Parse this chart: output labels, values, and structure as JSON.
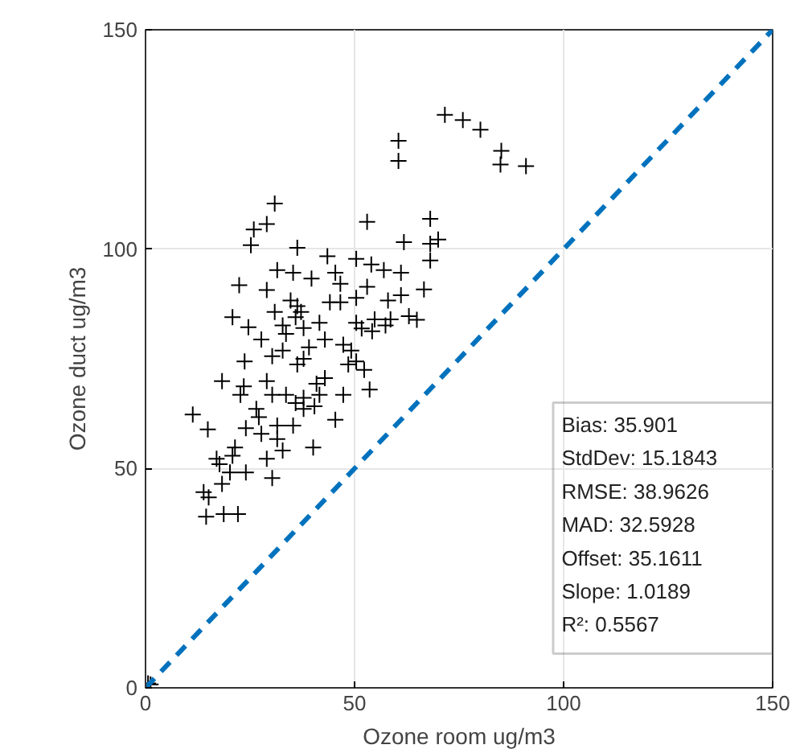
{
  "chart_data": {
    "type": "scatter",
    "xlabel": "Ozone room ug/m3",
    "ylabel": "Ozone duct ug/m3",
    "xlim": [
      0,
      150
    ],
    "ylim": [
      0,
      150
    ],
    "xticks": [
      0,
      50,
      100,
      150
    ],
    "yticks": [
      0,
      50,
      100,
      150
    ],
    "grid": true,
    "series": [
      {
        "color": "#000000",
        "marker": "cross",
        "x": [
          71.6,
          75.9,
          80.1,
          85.1,
          84.9,
          91.0,
          60.5,
          60.5,
          30.9,
          29.0,
          25.9,
          25.2,
          36.3,
          53.0,
          68.1,
          61.8,
          68.1,
          70.0,
          68.1,
          22.4,
          20.8,
          24.6,
          18.3,
          11.3,
          14.9,
          17.0,
          13.9,
          14.5,
          22.1,
          18.3,
          20.2,
          24.0,
          29.0,
          30.3,
          32.8,
          40.1,
          24.0,
          27.1,
          31.5,
          35.3,
          22.7,
          23.5,
          29.0,
          30.3,
          33.6,
          35.9,
          37.8,
          40.4,
          41.6,
          42.9,
          45.4,
          47.3,
          23.7,
          30.3,
          36.3,
          33.6,
          37.8,
          41.6,
          42.9,
          36.3,
          34.7,
          30.9,
          29.0,
          31.5,
          35.3,
          39.7,
          43.5,
          45.4,
          44.1,
          46.6,
          47.3,
          48.5,
          50.4,
          52.3,
          53.6,
          50.4,
          53.0,
          50.4,
          54.0,
          51.7,
          54.2,
          57.4,
          58.0,
          61.1,
          61.1,
          57.0,
          58.6,
          63.0,
          64.9,
          66.6,
          50.4,
          54.8,
          32.8,
          35.9,
          37.2,
          39.1,
          32.8,
          27.7,
          26.5,
          27.7,
          31.5,
          21.4,
          20.8,
          17.7,
          15.1,
          18.7,
          37.8,
          40.9,
          37.8,
          49.2,
          46.6,
          0.6,
          1.2
        ],
        "values": [
          130.6,
          129.4,
          127.2,
          122.4,
          119.3,
          118.9,
          124.7,
          120.1,
          110.4,
          105.7,
          104.5,
          100.9,
          100.3,
          106.2,
          106.9,
          101.6,
          101.2,
          102.2,
          97.4,
          91.8,
          84.5,
          82.2,
          69.9,
          62.3,
          58.9,
          52.2,
          44.6,
          39.0,
          39.6,
          46.5,
          49.1,
          49.1,
          52.2,
          47.8,
          54.1,
          54.8,
          59.2,
          61.7,
          59.8,
          59.8,
          66.8,
          68.7,
          69.9,
          66.8,
          66.8,
          64.9,
          66.1,
          64.2,
          66.8,
          70.6,
          61.1,
          66.8,
          74.4,
          75.6,
          73.7,
          80.7,
          82.0,
          83.2,
          79.4,
          87.0,
          88.3,
          85.7,
          90.7,
          95.2,
          94.6,
          93.3,
          98.4,
          94.6,
          87.9,
          87.9,
          78.2,
          73.7,
          74.4,
          72.5,
          68.0,
          88.9,
          91.4,
          97.8,
          96.5,
          81.9,
          81.3,
          82.6,
          88.3,
          89.5,
          94.6,
          95.2,
          84.0,
          84.7,
          83.9,
          90.8,
          83.2,
          84.0,
          82.6,
          84.5,
          85.7,
          77.6,
          76.9,
          79.4,
          63.6,
          57.9,
          56.7,
          54.8,
          52.9,
          51.0,
          43.4,
          39.6,
          75.0,
          69.3,
          63.6,
          76.9,
          92.1,
          1.0,
          0.8
        ]
      },
      {
        "type": "line",
        "color": "#0072bd",
        "line_style": "dashed",
        "marker": "none",
        "x": [
          0,
          150
        ],
        "values": [
          0,
          150
        ]
      }
    ],
    "annotations": [
      "Bias: 35.901",
      "StdDev: 15.1843",
      "RMSE: 38.9626",
      "MAD: 32.5928",
      "Offset: 35.1611",
      "Slope: 1.0189",
      "R²: 0.5567"
    ]
  }
}
